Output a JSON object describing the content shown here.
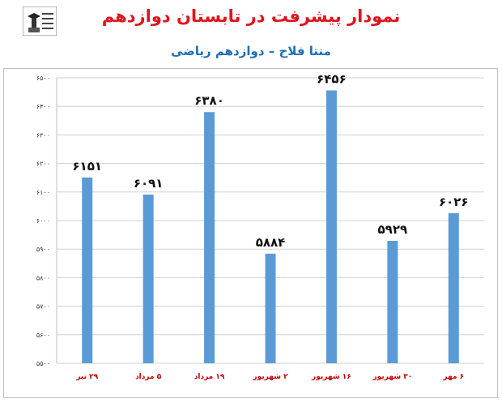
{
  "header": {
    "title": "نمودار پیشرفت در تابستان دوازدهم",
    "subtitle": "منتا فلاح – دوازدهم ریاضی"
  },
  "chart_data": {
    "type": "bar",
    "title": "نمودار پیشرفت در تابستان دوازدهم",
    "subtitle": "منتا فلاح – دوازدهم ریاضی",
    "categories": [
      "۲۹ تیر",
      "۵ مرداد",
      "۱۹ مرداد",
      "۲ شهریور",
      "۱۶ شهریور",
      "۳۰ شهریور",
      "۶ مهر"
    ],
    "values": [
      6151,
      6091,
      6380,
      5884,
      6456,
      5929,
      6026
    ],
    "data_labels": [
      "۶۱۵۱",
      "۶۰۹۱",
      "۶۳۸۰",
      "۵۸۸۴",
      "۶۴۵۶",
      "۵۹۲۹",
      "۶۰۲۶"
    ],
    "yticks": [
      5500,
      5600,
      5700,
      5800,
      5900,
      6000,
      6100,
      6200,
      6300,
      6400,
      6500
    ],
    "ytick_labels": [
      "۵۵۰۰",
      "۵۶۰۰",
      "۵۷۰۰",
      "۵۸۰۰",
      "۵۹۰۰",
      "۶۰۰۰",
      "۶۱۰۰",
      "۶۲۰۰",
      "۶۳۰۰",
      "۶۴۰۰",
      "۶۵۰۰"
    ],
    "ylim": [
      5500,
      6500
    ],
    "grid": true,
    "colors": {
      "bar": "#5b9bd5",
      "grid": "#d0d0d0",
      "xtick": "#c00000",
      "title": "#e0141e",
      "subtitle": "#1f6fb2"
    }
  }
}
